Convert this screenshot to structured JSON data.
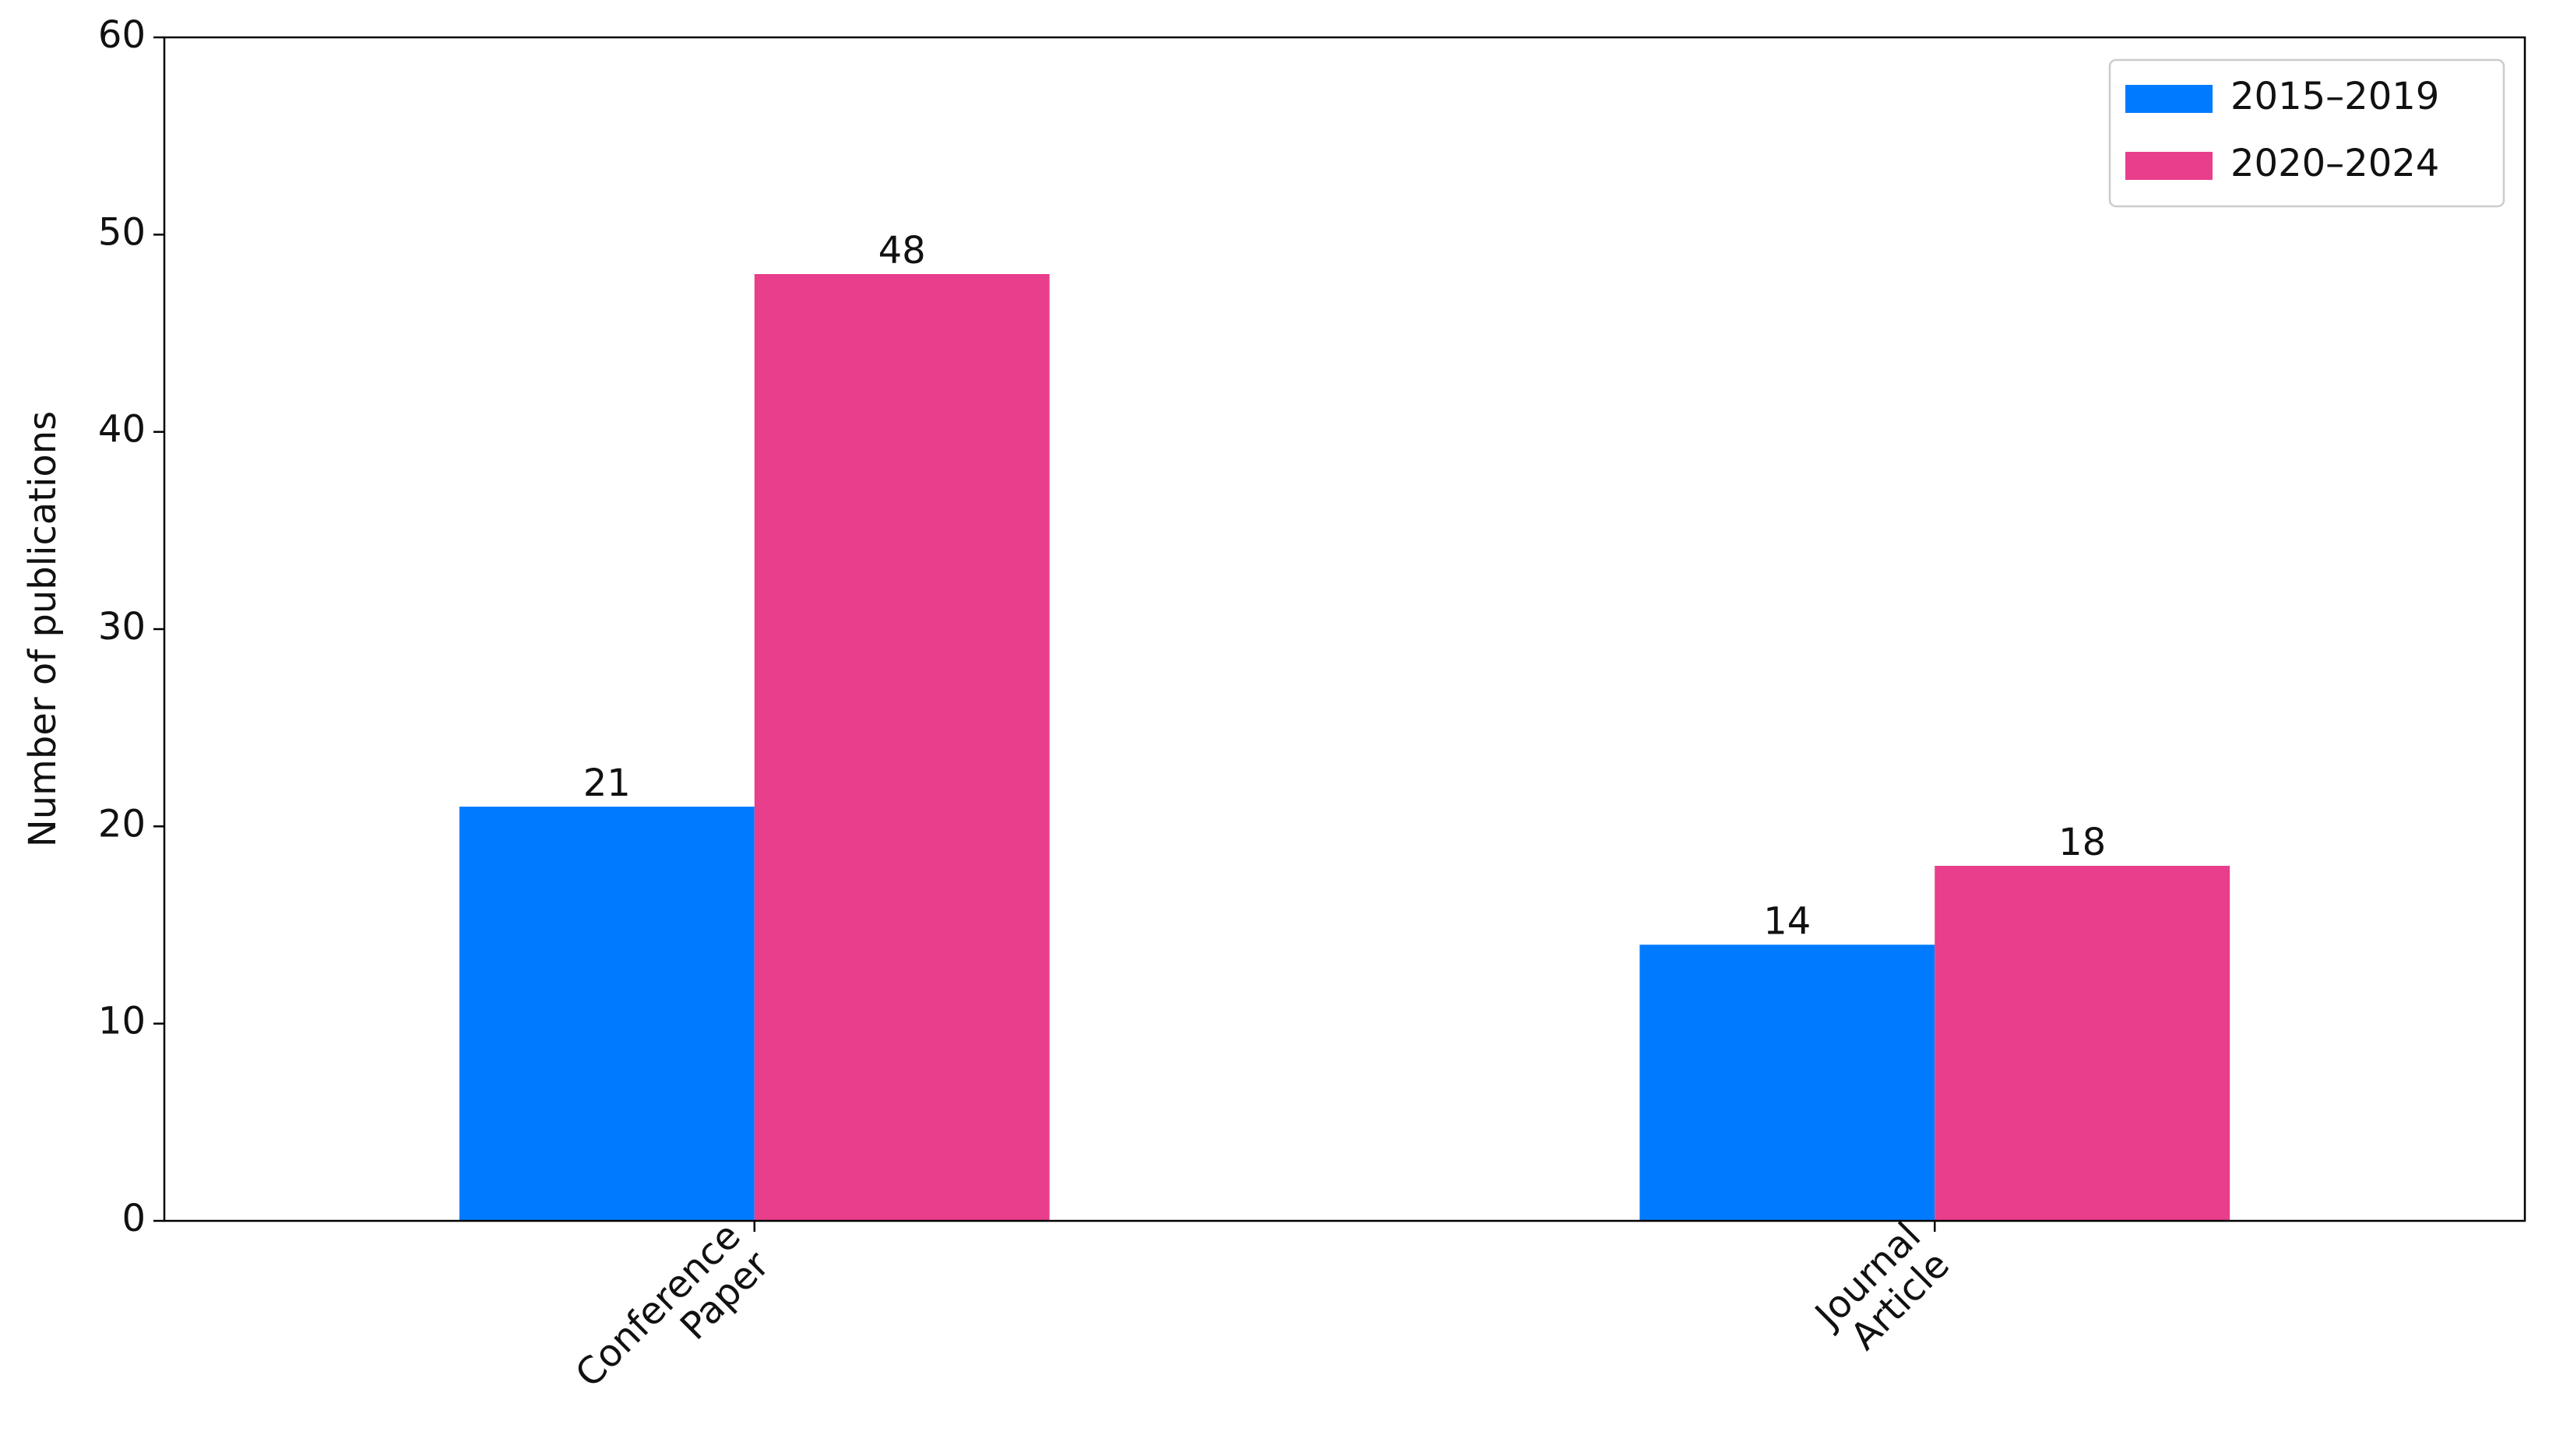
{
  "chart_data": {
    "type": "bar",
    "y_label": "Number of publications",
    "categories": [
      "Conference Paper",
      "Journal Article"
    ],
    "series": [
      {
        "name": "2015–2019",
        "color": "#007bff",
        "values": [
          21,
          14
        ]
      },
      {
        "name": "2020–2024",
        "color": "#e83e8c",
        "values": [
          48,
          18
        ]
      }
    ],
    "ylim": [
      0,
      60
    ],
    "yticks": [
      0,
      10,
      20,
      30,
      40,
      50,
      60
    ],
    "legend": "upper right",
    "grid": false
  }
}
